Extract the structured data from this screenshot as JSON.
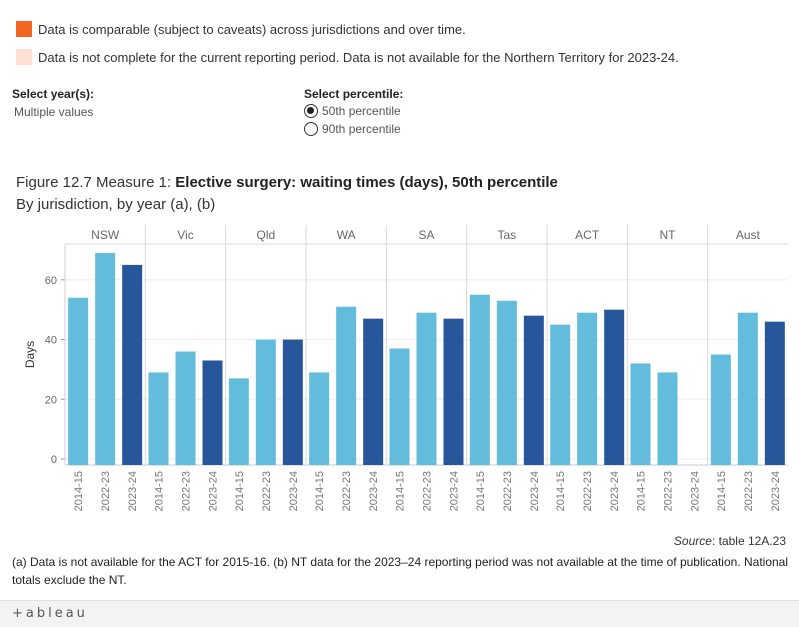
{
  "legend": [
    {
      "color": "#f26522",
      "text": "Data is comparable (subject to caveats) across jurisdictions and over time."
    },
    {
      "color": "#fde0d5",
      "text": "Data is not complete for the current reporting period. Data is not available for the Northern Territory for 2023-24."
    }
  ],
  "filters": {
    "year_label": "Select year(s):",
    "year_value": "Multiple values",
    "percentile_label": "Select percentile:",
    "percentile_options": [
      "50th percentile",
      "90th percentile"
    ],
    "percentile_selected": "50th percentile"
  },
  "figure": {
    "title_prefix": "Figure 12.7 Measure 1: ",
    "title_bold": "Elective surgery: waiting times (days), 50th percentile",
    "subtitle": "By jurisdiction, by year (a), (b)"
  },
  "chart_data": {
    "type": "bar",
    "ylabel": "Days",
    "ylim": [
      -2,
      72
    ],
    "yticks": [
      0,
      20,
      40,
      60
    ],
    "grid": true,
    "panels": [
      "NSW",
      "Vic",
      "Qld",
      "WA",
      "SA",
      "Tas",
      "ACT",
      "NT",
      "Aust"
    ],
    "categories": [
      "2014-15",
      "2022-23",
      "2023-24"
    ],
    "colors": {
      "2014-15": "#63bcdb",
      "2022-23": "#63bcdb",
      "2023-24": "#27569b"
    },
    "values": {
      "NSW": [
        54,
        69,
        65
      ],
      "Vic": [
        29,
        36,
        33
      ],
      "Qld": [
        27,
        40,
        40
      ],
      "WA": [
        29,
        51,
        47
      ],
      "SA": [
        37,
        49,
        47
      ],
      "Tas": [
        55,
        53,
        48
      ],
      "ACT": [
        45,
        49,
        50
      ],
      "NT": [
        32,
        29,
        null
      ],
      "Aust": [
        35,
        49,
        46
      ]
    }
  },
  "source": {
    "label": "Source",
    "text": ": table 12A.23"
  },
  "footnote": "(a) Data is not available for the ACT for 2015-16. (b) NT data for the 2023–24 reporting period was not available at the time of publication. National totals exclude the NT.",
  "footer": {
    "logo_text": "+ableau"
  }
}
